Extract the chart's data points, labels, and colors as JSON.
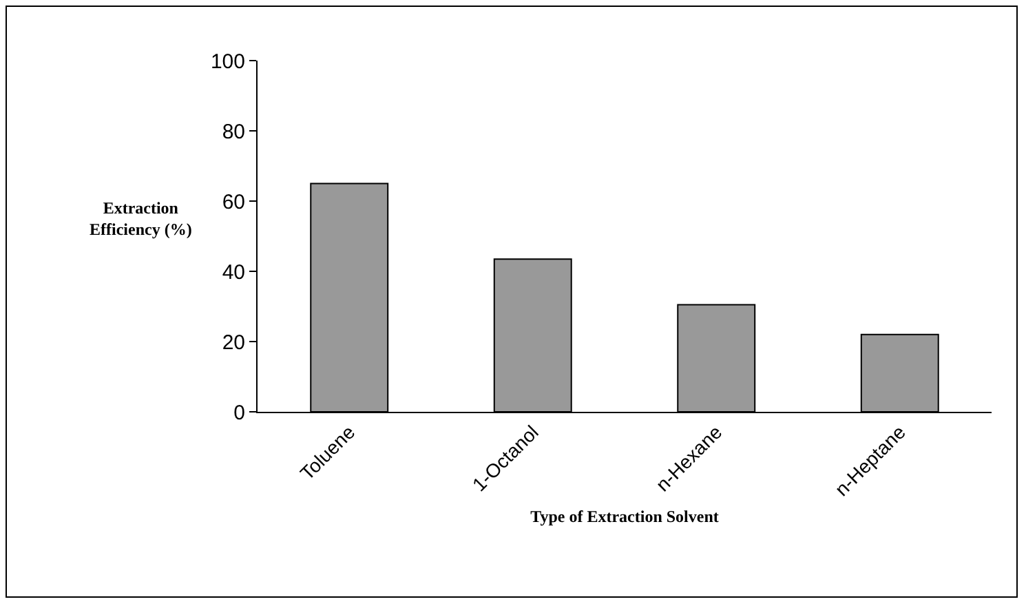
{
  "chart_data": {
    "type": "bar",
    "xlabel": "Type of Extraction Solvent",
    "ylabel": "Extraction Efficiency (%)",
    "categories": [
      "Toluene",
      "1-Octanol",
      "n-Hexane",
      "n-Heptane"
    ],
    "values": [
      65,
      43.5,
      30.5,
      22
    ],
    "color": "#999999",
    "ylim": [
      0,
      100
    ],
    "yticks": [
      0,
      20,
      40,
      60,
      80,
      100
    ]
  }
}
